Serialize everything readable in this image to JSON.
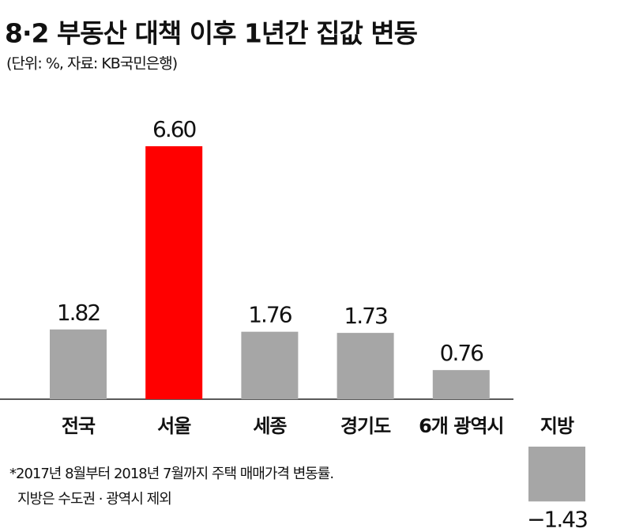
{
  "chart_data": {
    "type": "bar",
    "title": "8·2 부동산 대책 이후 1년간 집값 변동",
    "subtitle": "(단위: %, 자료: KB국민은행)",
    "categories": [
      "전국",
      "서울",
      "세종",
      "경기도",
      "6개 광역시",
      "지방"
    ],
    "values": [
      1.82,
      6.6,
      1.76,
      1.73,
      0.76,
      -1.43
    ],
    "value_labels": [
      "1.82",
      "6.60",
      "1.76",
      "1.73",
      "0.76",
      "−1.43"
    ],
    "colors": [
      "#a6a6a6",
      "#ff0000",
      "#a6a6a6",
      "#a6a6a6",
      "#a6a6a6",
      "#a6a6a6"
    ],
    "notes": [
      "*2017년 8월부터 2018년 7월까지 주택 매매가격 변동률.",
      "지방은 수도권 · 광역시 제외"
    ]
  }
}
